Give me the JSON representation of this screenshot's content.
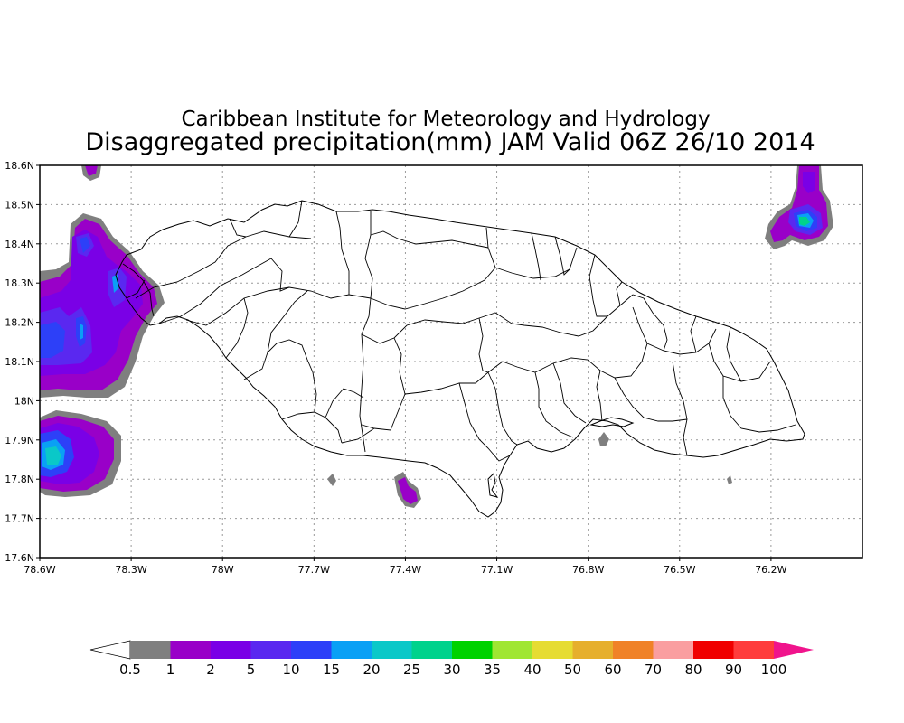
{
  "title_line1": "Caribbean Institute for Meteorology and Hydrology",
  "title_line2": "Disaggregated precipitation(mm) JAM Valid 06Z 26/10 2014",
  "axes": {
    "lon_range": [
      -78.6,
      -75.9
    ],
    "lat_range": [
      17.6,
      18.6
    ],
    "x_ticks": [
      {
        "value": -78.6,
        "label": "78.6W"
      },
      {
        "value": -78.3,
        "label": "78.3W"
      },
      {
        "value": -78.0,
        "label": "78W"
      },
      {
        "value": -77.7,
        "label": "77.7W"
      },
      {
        "value": -77.4,
        "label": "77.4W"
      },
      {
        "value": -77.1,
        "label": "77.1W"
      },
      {
        "value": -76.8,
        "label": "76.8W"
      },
      {
        "value": -76.5,
        "label": "76.5W"
      },
      {
        "value": -76.2,
        "label": "76.2W"
      }
    ],
    "y_ticks": [
      {
        "value": 18.6,
        "label": "18.6N"
      },
      {
        "value": 18.5,
        "label": "18.5N"
      },
      {
        "value": 18.4,
        "label": "18.4N"
      },
      {
        "value": 18.3,
        "label": "18.3N"
      },
      {
        "value": 18.2,
        "label": "18.2N"
      },
      {
        "value": 18.1,
        "label": "18.1N"
      },
      {
        "value": 18.0,
        "label": "18N"
      },
      {
        "value": 17.9,
        "label": "17.9N"
      },
      {
        "value": 17.8,
        "label": "17.8N"
      },
      {
        "value": 17.7,
        "label": "17.7N"
      },
      {
        "value": 17.6,
        "label": "17.6N"
      }
    ],
    "grid": true
  },
  "legend": {
    "colors": [
      "#7f7f7f",
      "#9900c8",
      "#7a00e6",
      "#5a28f0",
      "#2d40f8",
      "#0aa0f5",
      "#0ac8c8",
      "#00d28c",
      "#00d200",
      "#a0e632",
      "#e6dc32",
      "#e6af2d",
      "#f08228",
      "#fa9ea0",
      "#f00000",
      "#ff3c3c"
    ],
    "labels": [
      "0.5",
      "1",
      "2",
      "5",
      "10",
      "15",
      "20",
      "25",
      "30",
      "35",
      "40",
      "50",
      "60",
      "70",
      "80",
      "90",
      "100"
    ],
    "low_arrow_color": "#ffffff",
    "high_arrow_color": "#f0148c"
  },
  "precip_blobs": [
    {
      "id": "west-upper",
      "lon": -78.46,
      "lat": 18.39,
      "level": 3
    },
    {
      "id": "west-lucea",
      "lon": -78.35,
      "lat": 18.29,
      "level": 3
    },
    {
      "id": "west-middle",
      "lon": -78.48,
      "lat": 18.16,
      "level": 3
    },
    {
      "id": "west-lower",
      "lon": -78.55,
      "lat": 17.86,
      "level": 5
    },
    {
      "id": "south-coast",
      "lon": -77.42,
      "lat": 17.77,
      "level": 1
    },
    {
      "id": "northeast",
      "lon": -76.19,
      "lat": 18.46,
      "level": 6
    }
  ]
}
